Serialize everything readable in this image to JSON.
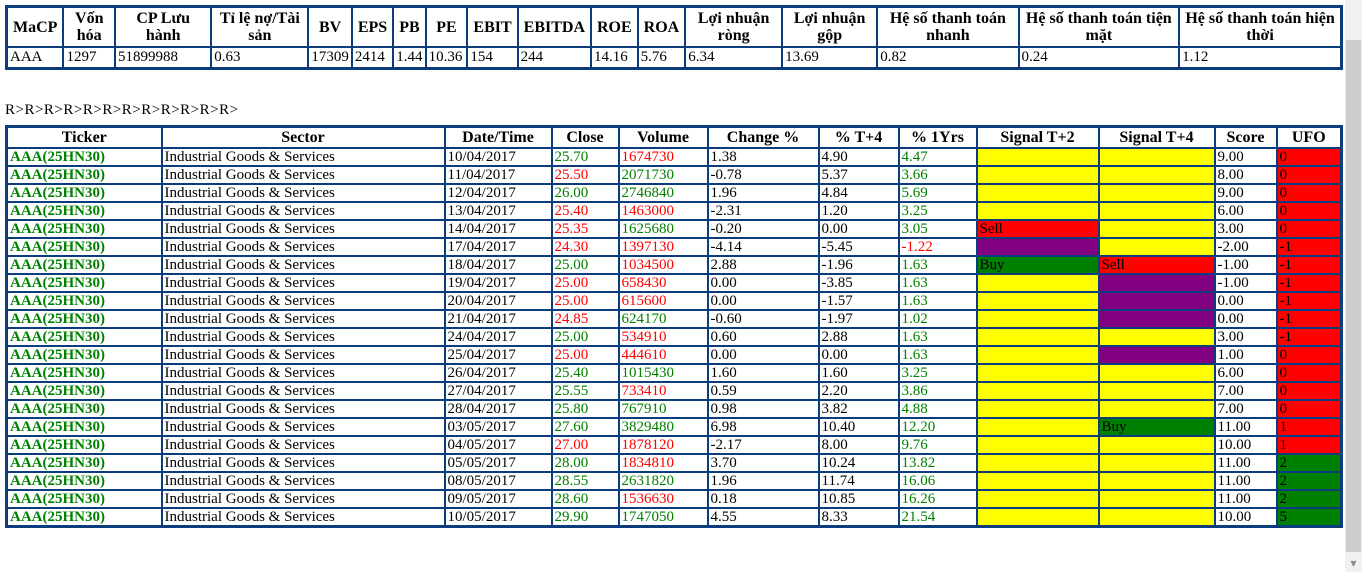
{
  "colors": {
    "green": "#008000",
    "red": "#ff0000",
    "yellow": "#ffff00",
    "purple": "#800080",
    "border": "#0b3d7c"
  },
  "summary_table": {
    "headers": [
      "MaCP",
      "Vốn hóa",
      "CP Lưu hành",
      "Tỉ lệ nợ/Tài sản",
      "BV",
      "EPS",
      "PB",
      "PE",
      "EBIT",
      "EBITDA",
      "ROE",
      "ROA",
      "Lợi nhuận ròng",
      "Lợi nhuận gộp",
      "Hệ số thanh toán nhanh",
      "Hệ số thanh toán tiện mặt",
      "Hệ số thanh toán hiện thời"
    ],
    "values": [
      "AAA",
      "1297",
      "51899988",
      "0.63",
      "17309",
      "2414",
      "1.44",
      "10.36",
      "154",
      "244",
      "14.16",
      "5.76",
      "6.34",
      "13.69",
      "0.82",
      "0.24",
      "1.12"
    ]
  },
  "marker_line": "R>R>R>R>R>R>R>R>R>R>R>R>",
  "main_table": {
    "headers": [
      "Ticker",
      "Sector",
      "Date/Time",
      "Close",
      "Volume",
      "Change %",
      "% T+4",
      "% 1Yrs",
      "Signal T+2",
      "Signal T+4",
      "Score",
      "UFO"
    ],
    "rows": [
      {
        "ticker": "AAA(25HN30)",
        "sector": "Industrial Goods & Services",
        "date": "10/04/2017",
        "close": "25.70",
        "close_color": "green",
        "volume": "1674730",
        "volume_color": "red",
        "change_pct": "1.38",
        "pct_t4": "4.90",
        "pct_1yr": "4.47",
        "pct_1yr_color": "green",
        "signal_t2": {
          "label": "",
          "bg": "yellow"
        },
        "signal_t4": {
          "label": "",
          "bg": "yellow"
        },
        "score": "9.00",
        "ufo": "0",
        "ufo_bg": "red"
      },
      {
        "ticker": "AAA(25HN30)",
        "sector": "Industrial Goods & Services",
        "date": "11/04/2017",
        "close": "25.50",
        "close_color": "red",
        "volume": "2071730",
        "volume_color": "green",
        "change_pct": "-0.78",
        "pct_t4": "5.37",
        "pct_1yr": "3.66",
        "pct_1yr_color": "green",
        "signal_t2": {
          "label": "",
          "bg": "yellow"
        },
        "signal_t4": {
          "label": "",
          "bg": "yellow"
        },
        "score": "8.00",
        "ufo": "0",
        "ufo_bg": "red"
      },
      {
        "ticker": "AAA(25HN30)",
        "sector": "Industrial Goods & Services",
        "date": "12/04/2017",
        "close": "26.00",
        "close_color": "green",
        "volume": "2746840",
        "volume_color": "green",
        "change_pct": "1.96",
        "pct_t4": "4.84",
        "pct_1yr": "5.69",
        "pct_1yr_color": "green",
        "signal_t2": {
          "label": "",
          "bg": "yellow"
        },
        "signal_t4": {
          "label": "",
          "bg": "yellow"
        },
        "score": "9.00",
        "ufo": "0",
        "ufo_bg": "red"
      },
      {
        "ticker": "AAA(25HN30)",
        "sector": "Industrial Goods & Services",
        "date": "13/04/2017",
        "close": "25.40",
        "close_color": "red",
        "volume": "1463000",
        "volume_color": "red",
        "change_pct": "-2.31",
        "pct_t4": "1.20",
        "pct_1yr": "3.25",
        "pct_1yr_color": "green",
        "signal_t2": {
          "label": "",
          "bg": "yellow"
        },
        "signal_t4": {
          "label": "",
          "bg": "yellow"
        },
        "score": "6.00",
        "ufo": "0",
        "ufo_bg": "red"
      },
      {
        "ticker": "AAA(25HN30)",
        "sector": "Industrial Goods & Services",
        "date": "14/04/2017",
        "close": "25.35",
        "close_color": "red",
        "volume": "1625680",
        "volume_color": "green",
        "change_pct": "-0.20",
        "pct_t4": "0.00",
        "pct_1yr": "3.05",
        "pct_1yr_color": "green",
        "signal_t2": {
          "label": "Sell",
          "bg": "red"
        },
        "signal_t4": {
          "label": "",
          "bg": "yellow"
        },
        "score": "3.00",
        "ufo": "0",
        "ufo_bg": "red"
      },
      {
        "ticker": "AAA(25HN30)",
        "sector": "Industrial Goods & Services",
        "date": "17/04/2017",
        "close": "24.30",
        "close_color": "red",
        "volume": "1397130",
        "volume_color": "red",
        "change_pct": "-4.14",
        "pct_t4": "-5.45",
        "pct_1yr": "-1.22",
        "pct_1yr_color": "red",
        "signal_t2": {
          "label": "",
          "bg": "purple"
        },
        "signal_t4": {
          "label": "",
          "bg": "yellow"
        },
        "score": "-2.00",
        "ufo": "-1",
        "ufo_bg": "red"
      },
      {
        "ticker": "AAA(25HN30)",
        "sector": "Industrial Goods & Services",
        "date": "18/04/2017",
        "close": "25.00",
        "close_color": "green",
        "volume": "1034500",
        "volume_color": "red",
        "change_pct": "2.88",
        "pct_t4": "-1.96",
        "pct_1yr": "1.63",
        "pct_1yr_color": "green",
        "signal_t2": {
          "label": "Buy",
          "bg": "green"
        },
        "signal_t4": {
          "label": "Sell",
          "bg": "red"
        },
        "score": "-1.00",
        "ufo": "-1",
        "ufo_bg": "red"
      },
      {
        "ticker": "AAA(25HN30)",
        "sector": "Industrial Goods & Services",
        "date": "19/04/2017",
        "close": "25.00",
        "close_color": "red",
        "volume": "658430",
        "volume_color": "red",
        "change_pct": "0.00",
        "pct_t4": "-3.85",
        "pct_1yr": "1.63",
        "pct_1yr_color": "green",
        "signal_t2": {
          "label": "",
          "bg": "yellow"
        },
        "signal_t4": {
          "label": "",
          "bg": "purple"
        },
        "score": "-1.00",
        "ufo": "-1",
        "ufo_bg": "red"
      },
      {
        "ticker": "AAA(25HN30)",
        "sector": "Industrial Goods & Services",
        "date": "20/04/2017",
        "close": "25.00",
        "close_color": "red",
        "volume": "615600",
        "volume_color": "red",
        "change_pct": "0.00",
        "pct_t4": "-1.57",
        "pct_1yr": "1.63",
        "pct_1yr_color": "green",
        "signal_t2": {
          "label": "",
          "bg": "yellow"
        },
        "signal_t4": {
          "label": "",
          "bg": "purple"
        },
        "score": "0.00",
        "ufo": "-1",
        "ufo_bg": "red"
      },
      {
        "ticker": "AAA(25HN30)",
        "sector": "Industrial Goods & Services",
        "date": "21/04/2017",
        "close": "24.85",
        "close_color": "red",
        "volume": "624170",
        "volume_color": "green",
        "change_pct": "-0.60",
        "pct_t4": "-1.97",
        "pct_1yr": "1.02",
        "pct_1yr_color": "green",
        "signal_t2": {
          "label": "",
          "bg": "yellow"
        },
        "signal_t4": {
          "label": "",
          "bg": "purple"
        },
        "score": "0.00",
        "ufo": "-1",
        "ufo_bg": "red"
      },
      {
        "ticker": "AAA(25HN30)",
        "sector": "Industrial Goods & Services",
        "date": "24/04/2017",
        "close": "25.00",
        "close_color": "green",
        "volume": "534910",
        "volume_color": "red",
        "change_pct": "0.60",
        "pct_t4": "2.88",
        "pct_1yr": "1.63",
        "pct_1yr_color": "green",
        "signal_t2": {
          "label": "",
          "bg": "yellow"
        },
        "signal_t4": {
          "label": "",
          "bg": "yellow"
        },
        "score": "3.00",
        "ufo": "-1",
        "ufo_bg": "red"
      },
      {
        "ticker": "AAA(25HN30)",
        "sector": "Industrial Goods & Services",
        "date": "25/04/2017",
        "close": "25.00",
        "close_color": "red",
        "volume": "444610",
        "volume_color": "red",
        "change_pct": "0.00",
        "pct_t4": "0.00",
        "pct_1yr": "1.63",
        "pct_1yr_color": "green",
        "signal_t2": {
          "label": "",
          "bg": "yellow"
        },
        "signal_t4": {
          "label": "",
          "bg": "purple"
        },
        "score": "1.00",
        "ufo": "0",
        "ufo_bg": "red"
      },
      {
        "ticker": "AAA(25HN30)",
        "sector": "Industrial Goods & Services",
        "date": "26/04/2017",
        "close": "25.40",
        "close_color": "green",
        "volume": "1015430",
        "volume_color": "green",
        "change_pct": "1.60",
        "pct_t4": "1.60",
        "pct_1yr": "3.25",
        "pct_1yr_color": "green",
        "signal_t2": {
          "label": "",
          "bg": "yellow"
        },
        "signal_t4": {
          "label": "",
          "bg": "yellow"
        },
        "score": "6.00",
        "ufo": "0",
        "ufo_bg": "red"
      },
      {
        "ticker": "AAA(25HN30)",
        "sector": "Industrial Goods & Services",
        "date": "27/04/2017",
        "close": "25.55",
        "close_color": "green",
        "volume": "733410",
        "volume_color": "red",
        "change_pct": "0.59",
        "pct_t4": "2.20",
        "pct_1yr": "3.86",
        "pct_1yr_color": "green",
        "signal_t2": {
          "label": "",
          "bg": "yellow"
        },
        "signal_t4": {
          "label": "",
          "bg": "yellow"
        },
        "score": "7.00",
        "ufo": "0",
        "ufo_bg": "red"
      },
      {
        "ticker": "AAA(25HN30)",
        "sector": "Industrial Goods & Services",
        "date": "28/04/2017",
        "close": "25.80",
        "close_color": "green",
        "volume": "767910",
        "volume_color": "green",
        "change_pct": "0.98",
        "pct_t4": "3.82",
        "pct_1yr": "4.88",
        "pct_1yr_color": "green",
        "signal_t2": {
          "label": "",
          "bg": "yellow"
        },
        "signal_t4": {
          "label": "",
          "bg": "yellow"
        },
        "score": "7.00",
        "ufo": "0",
        "ufo_bg": "red"
      },
      {
        "ticker": "AAA(25HN30)",
        "sector": "Industrial Goods & Services",
        "date": "03/05/2017",
        "close": "27.60",
        "close_color": "green",
        "volume": "3829480",
        "volume_color": "green",
        "change_pct": "6.98",
        "pct_t4": "10.40",
        "pct_1yr": "12.20",
        "pct_1yr_color": "green",
        "signal_t2": {
          "label": "",
          "bg": "yellow"
        },
        "signal_t4": {
          "label": "Buy",
          "bg": "green"
        },
        "score": "11.00",
        "ufo": "1",
        "ufo_bg": "red"
      },
      {
        "ticker": "AAA(25HN30)",
        "sector": "Industrial Goods & Services",
        "date": "04/05/2017",
        "close": "27.00",
        "close_color": "red",
        "volume": "1878120",
        "volume_color": "red",
        "change_pct": "-2.17",
        "pct_t4": "8.00",
        "pct_1yr": "9.76",
        "pct_1yr_color": "green",
        "signal_t2": {
          "label": "",
          "bg": "yellow"
        },
        "signal_t4": {
          "label": "",
          "bg": "yellow"
        },
        "score": "10.00",
        "ufo": "1",
        "ufo_bg": "red"
      },
      {
        "ticker": "AAA(25HN30)",
        "sector": "Industrial Goods & Services",
        "date": "05/05/2017",
        "close": "28.00",
        "close_color": "green",
        "volume": "1834810",
        "volume_color": "red",
        "change_pct": "3.70",
        "pct_t4": "10.24",
        "pct_1yr": "13.82",
        "pct_1yr_color": "green",
        "signal_t2": {
          "label": "",
          "bg": "yellow"
        },
        "signal_t4": {
          "label": "",
          "bg": "yellow"
        },
        "score": "11.00",
        "ufo": "2",
        "ufo_bg": "green"
      },
      {
        "ticker": "AAA(25HN30)",
        "sector": "Industrial Goods & Services",
        "date": "08/05/2017",
        "close": "28.55",
        "close_color": "green",
        "volume": "2631820",
        "volume_color": "green",
        "change_pct": "1.96",
        "pct_t4": "11.74",
        "pct_1yr": "16.06",
        "pct_1yr_color": "green",
        "signal_t2": {
          "label": "",
          "bg": "yellow"
        },
        "signal_t4": {
          "label": "",
          "bg": "yellow"
        },
        "score": "11.00",
        "ufo": "2",
        "ufo_bg": "green"
      },
      {
        "ticker": "AAA(25HN30)",
        "sector": "Industrial Goods & Services",
        "date": "09/05/2017",
        "close": "28.60",
        "close_color": "green",
        "volume": "1536630",
        "volume_color": "red",
        "change_pct": "0.18",
        "pct_t4": "10.85",
        "pct_1yr": "16.26",
        "pct_1yr_color": "green",
        "signal_t2": {
          "label": "",
          "bg": "yellow"
        },
        "signal_t4": {
          "label": "",
          "bg": "yellow"
        },
        "score": "11.00",
        "ufo": "2",
        "ufo_bg": "green"
      },
      {
        "ticker": "AAA(25HN30)",
        "sector": "Industrial Goods & Services",
        "date": "10/05/2017",
        "close": "29.90",
        "close_color": "green",
        "volume": "1747050",
        "volume_color": "green",
        "change_pct": "4.55",
        "pct_t4": "8.33",
        "pct_1yr": "21.54",
        "pct_1yr_color": "green",
        "signal_t2": {
          "label": "",
          "bg": "yellow"
        },
        "signal_t4": {
          "label": "",
          "bg": "yellow"
        },
        "score": "10.00",
        "ufo": "5",
        "ufo_bg": "green"
      }
    ]
  },
  "scrollbar": {
    "down_arrow": "▼"
  }
}
